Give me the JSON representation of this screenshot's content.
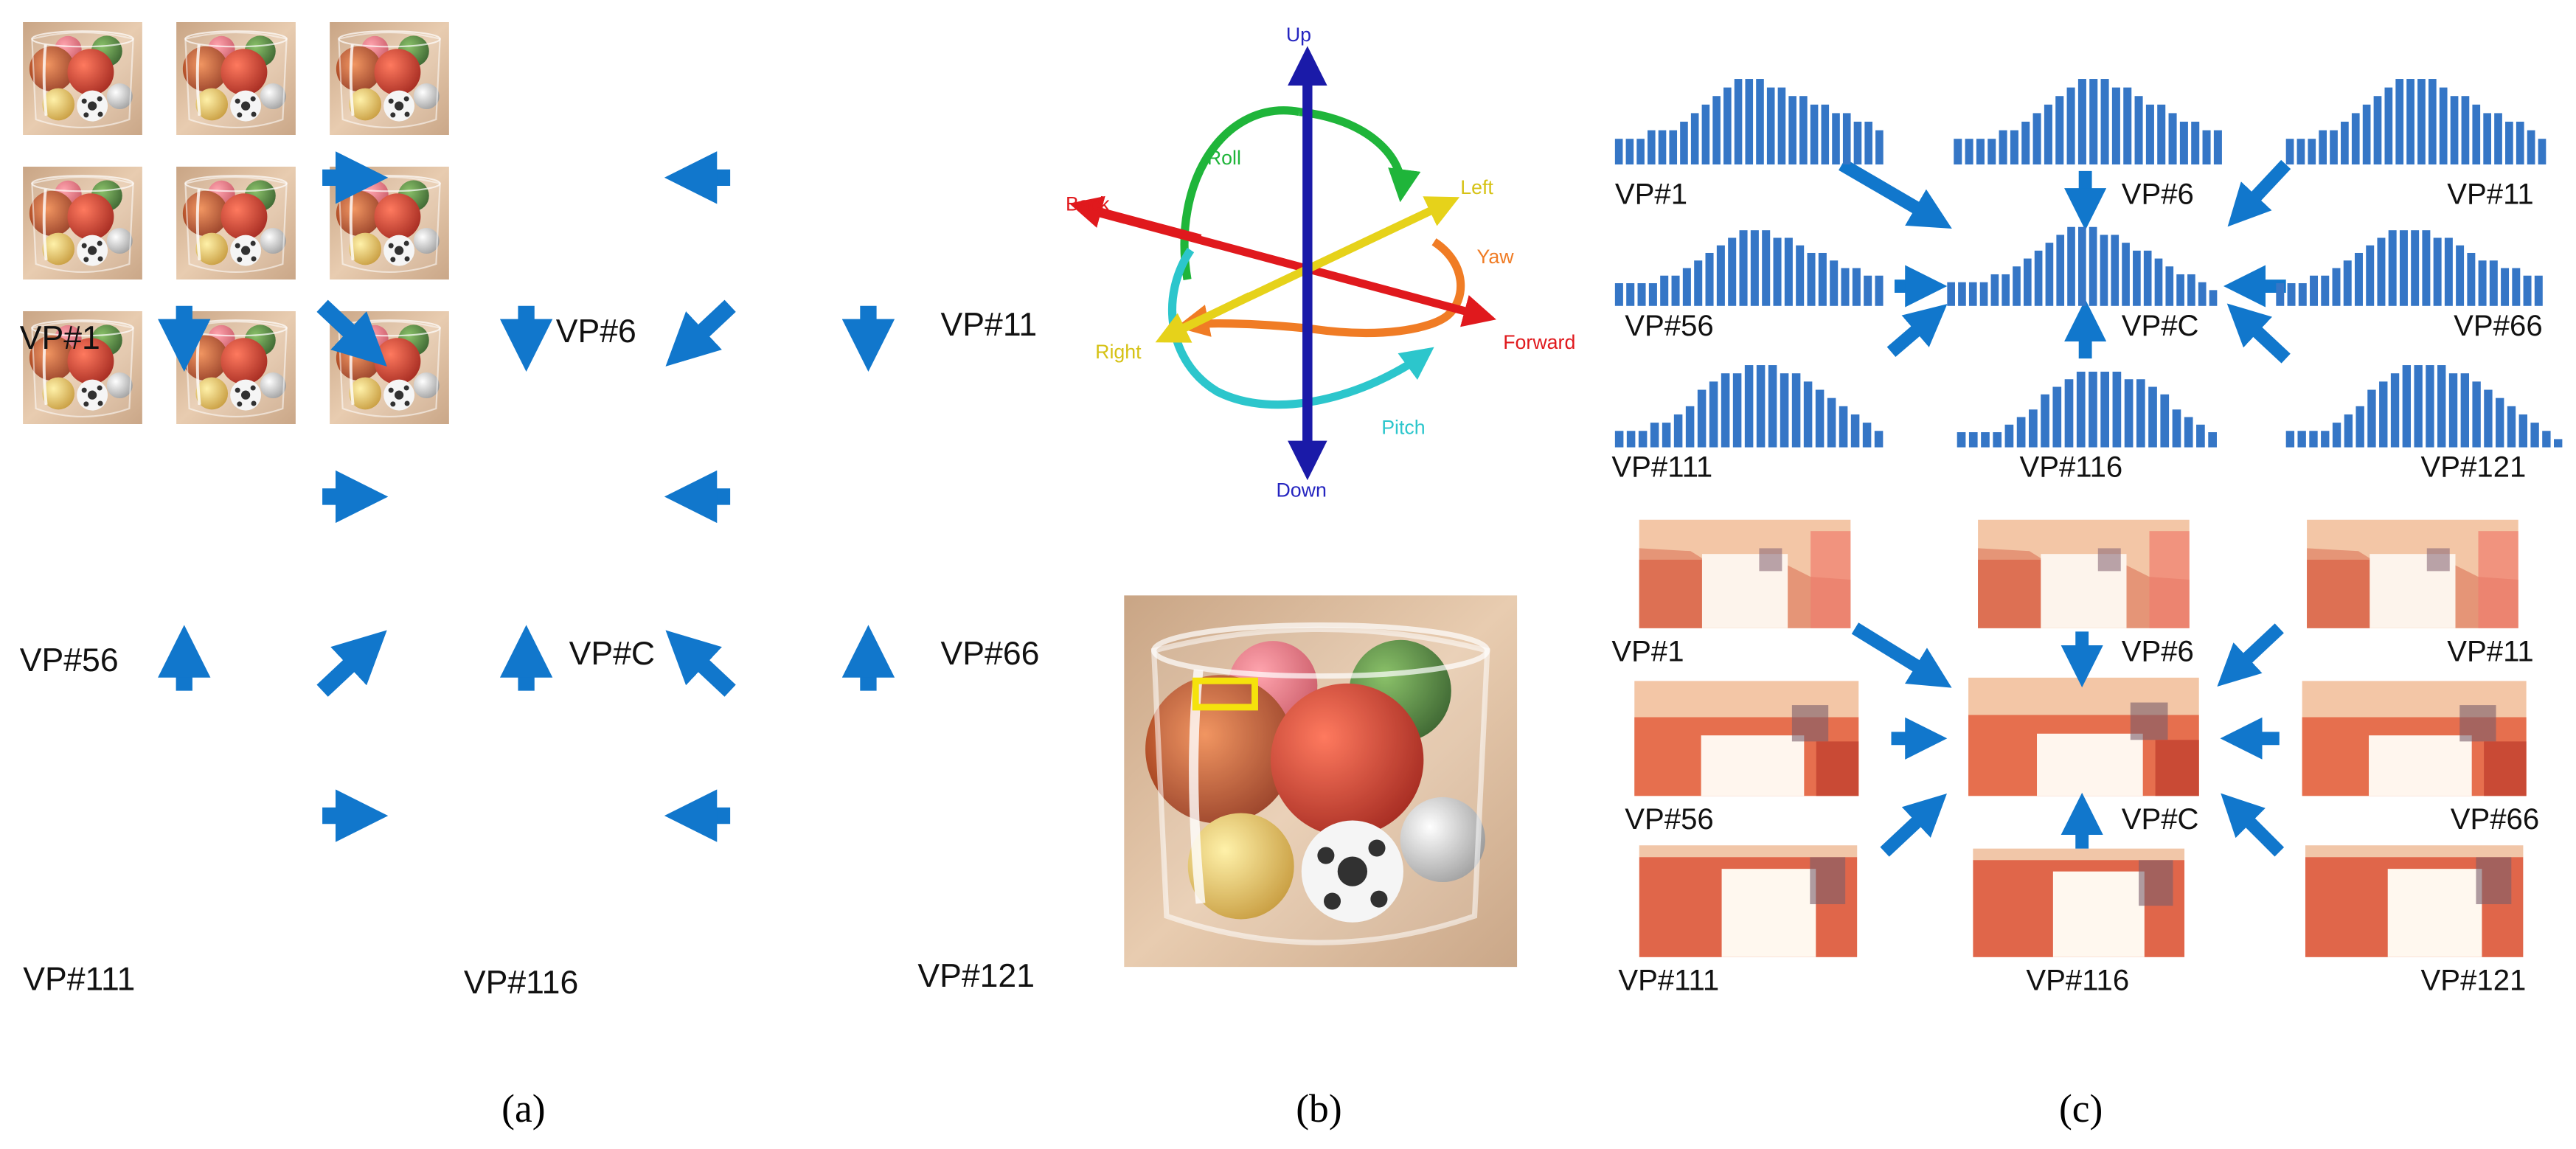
{
  "panel_a": {
    "labels": {
      "vp1": "VP#1",
      "vp6": "VP#6",
      "vp11": "VP#11",
      "vp56": "VP#56",
      "vpc": "VP#C",
      "vp66": "VP#66",
      "vp111": "VP#111",
      "vp116": "VP#116",
      "vp121": "VP#121"
    }
  },
  "panel_b": {
    "axes": {
      "up": "Up",
      "down": "Down",
      "back": "Back",
      "forward": "Forward",
      "left": "Left",
      "right": "Right",
      "roll": "Roll",
      "yaw": "Yaw",
      "pitch": "Pitch"
    }
  },
  "panel_c": {
    "labels": {
      "vp1": "VP#1",
      "vp6": "VP#6",
      "vp11": "VP#11",
      "vp56": "VP#56",
      "vpc": "VP#C",
      "vp66": "VP#66",
      "vp111": "VP#111",
      "vp116": "VP#116",
      "vp121": "VP#121"
    },
    "histograms": {
      "vp1": [
        3,
        3,
        3,
        4,
        4,
        4,
        5,
        6,
        7,
        8,
        9,
        10,
        10,
        10,
        9,
        9,
        8,
        8,
        7,
        7,
        6,
        6,
        5,
        5,
        4
      ],
      "vp6": [
        3,
        3,
        3,
        3,
        4,
        4,
        5,
        6,
        7,
        8,
        9,
        10,
        10,
        10,
        9,
        9,
        8,
        7,
        7,
        6,
        5,
        5,
        4,
        4
      ],
      "vp11": [
        3,
        3,
        3,
        4,
        4,
        5,
        6,
        7,
        8,
        9,
        10,
        10,
        10,
        10,
        9,
        8,
        8,
        7,
        6,
        6,
        5,
        5,
        4,
        3
      ],
      "vp56": [
        3,
        3,
        3,
        3,
        4,
        4,
        5,
        6,
        7,
        8,
        9,
        10,
        10,
        10,
        9,
        9,
        8,
        7,
        7,
        6,
        5,
        5,
        4,
        4
      ],
      "vpc": [
        3,
        3,
        3,
        3,
        4,
        4,
        5,
        6,
        7,
        8,
        9,
        10,
        10,
        10,
        9,
        9,
        8,
        7,
        7,
        6,
        5,
        4,
        4,
        3,
        2
      ],
      "vp66": [
        3,
        3,
        3,
        4,
        4,
        5,
        6,
        7,
        8,
        9,
        10,
        10,
        10,
        10,
        9,
        9,
        8,
        7,
        6,
        6,
        5,
        5,
        4,
        4
      ],
      "vp111": [
        2,
        2,
        2,
        3,
        3,
        4,
        5,
        7,
        8,
        9,
        9,
        10,
        10,
        10,
        9,
        9,
        8,
        7,
        6,
        5,
        4,
        3,
        2
      ],
      "vp116": [
        2,
        2,
        2,
        2,
        3,
        4,
        5,
        7,
        8,
        9,
        10,
        10,
        10,
        10,
        9,
        9,
        8,
        7,
        5,
        4,
        3,
        2
      ],
      "vp121": [
        2,
        2,
        2,
        2,
        3,
        4,
        5,
        7,
        8,
        9,
        10,
        10,
        10,
        10,
        9,
        9,
        8,
        7,
        6,
        5,
        4,
        3,
        2,
        1
      ]
    }
  },
  "captions": {
    "a": "(a)",
    "b": "(b)",
    "c": "(c)"
  },
  "colors": {
    "arrow": "#1177cc",
    "bar": "#3576c6",
    "up_down": "#1a1aa8",
    "back_forward": "#e0191d",
    "left_right": "#e6d21a",
    "roll": "#1fb53a",
    "yaw": "#f07c25",
    "pitch": "#2cc6cc",
    "highlight": "#f5e20c"
  }
}
